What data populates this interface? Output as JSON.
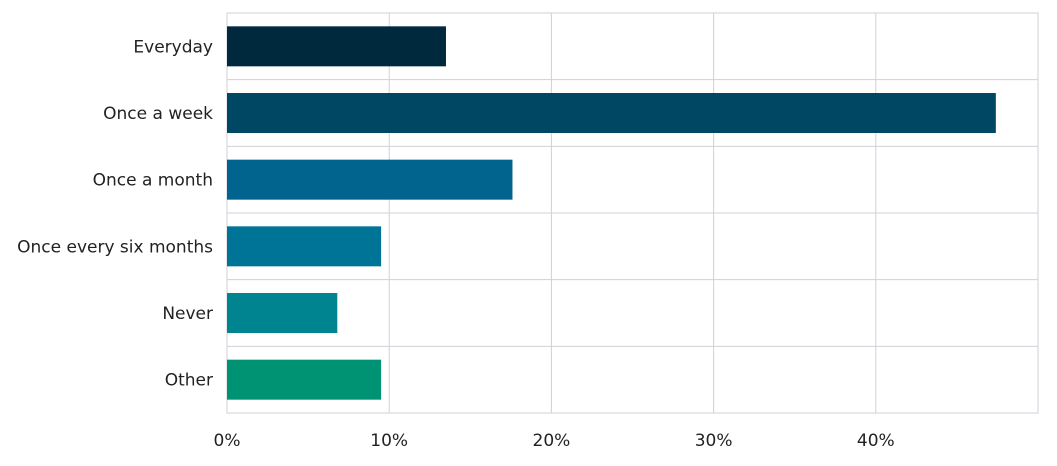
{
  "chart_data": {
    "type": "bar",
    "orientation": "horizontal",
    "categories": [
      "Everyday",
      "Once a week",
      "Once a month",
      "Once every six months",
      "Never",
      "Other"
    ],
    "values": [
      13.5,
      47.4,
      17.6,
      9.5,
      6.8,
      9.5
    ],
    "colors": [
      "#00293e",
      "#004764",
      "#00648f",
      "#007497",
      "#00848f",
      "#009373"
    ],
    "xlim": [
      0,
      50
    ],
    "xticks": [
      0,
      10,
      20,
      30,
      40
    ],
    "xtick_labels": [
      "0%",
      "10%",
      "20%",
      "30%",
      "40%"
    ],
    "grid": true,
    "legend": "none"
  }
}
